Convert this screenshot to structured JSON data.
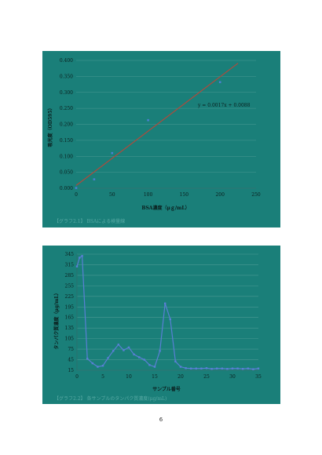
{
  "page_number": "6",
  "chart_data": [
    {
      "type": "scatter",
      "title": "",
      "xlabel": "BSA濃度（μｇ/mL）",
      "ylabel": "吸光度（OD595）",
      "xlim": [
        0,
        250
      ],
      "ylim": [
        0,
        0.4
      ],
      "x_ticks": [
        "0",
        "50",
        "100",
        "150",
        "200",
        "250"
      ],
      "y_ticks": [
        "0.000",
        "0.050",
        "0.100",
        "0.150",
        "0.200",
        "0.250",
        "0.300",
        "0.350",
        "0.400"
      ],
      "points": [
        {
          "x": 0,
          "y": 0.001
        },
        {
          "x": 25,
          "y": 0.028
        },
        {
          "x": 50,
          "y": 0.11
        },
        {
          "x": 100,
          "y": 0.213
        },
        {
          "x": 200,
          "y": 0.332
        }
      ],
      "trendline": {
        "slope": 0.0017,
        "intercept": 0.0088,
        "x_range": [
          0,
          225
        ]
      },
      "equation": "y = 0.0017x + 0.0088",
      "caption": "【グラフ2.1】 BSAによる検量線",
      "colors": {
        "points": "#4a7fd0",
        "trendline": "#b04a3c",
        "grid": "#4a9994"
      }
    },
    {
      "type": "line",
      "title": "",
      "xlabel": "サンプル番号",
      "ylabel": "タンパク質濃度（μg/mL）",
      "xlim": [
        0,
        35
      ],
      "ylim": [
        15,
        345
      ],
      "x_ticks": [
        "0",
        "5",
        "10",
        "15",
        "20",
        "25",
        "30",
        "35"
      ],
      "y_ticks": [
        "15",
        "45",
        "75",
        "105",
        "135",
        "165",
        "195",
        "225",
        "255",
        "285",
        "315",
        "345"
      ],
      "x": [
        0,
        0.5,
        1,
        2,
        3,
        4,
        5,
        6,
        7,
        8,
        9,
        10,
        11,
        12,
        13,
        14,
        15,
        16,
        17,
        18,
        19,
        20,
        21,
        22,
        23,
        24,
        25,
        26,
        27,
        28,
        29,
        30,
        31,
        32,
        33,
        34,
        35
      ],
      "values": [
        310,
        335,
        340,
        48,
        35,
        25,
        28,
        50,
        70,
        88,
        72,
        80,
        60,
        52,
        45,
        30,
        25,
        70,
        205,
        160,
        40,
        25,
        21,
        20,
        20,
        20,
        21,
        19,
        20,
        20,
        19,
        20,
        20,
        19,
        20,
        18,
        20
      ],
      "caption": "【グラフ2.2】 各サンプルのタンパク質濃度(μg/mL)",
      "colors": {
        "line": "#5a7fd6",
        "marker": "#5a7fd6",
        "grid": "#4a9994"
      }
    }
  ]
}
